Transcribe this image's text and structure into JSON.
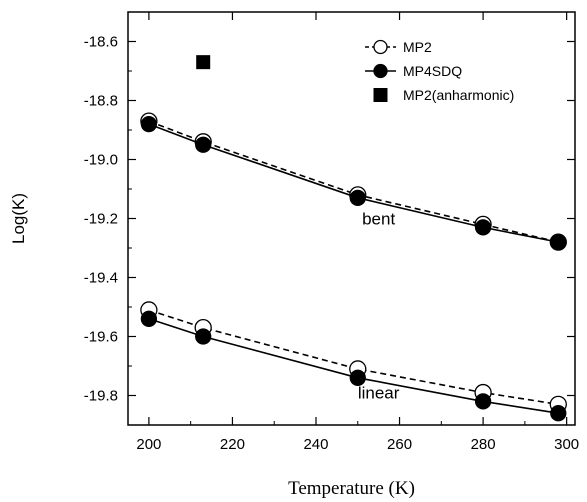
{
  "chart_data": {
    "type": "line",
    "title": "",
    "xlabel": "Temperature (K)",
    "ylabel": "Log(K)",
    "xlim": [
      195,
      302
    ],
    "ylim": [
      -19.9,
      -18.5
    ],
    "xticks": [
      200,
      220,
      240,
      260,
      280,
      300
    ],
    "yticks": [
      -18.6,
      -18.8,
      -19.0,
      -19.2,
      -19.4,
      -19.6,
      -19.8
    ],
    "grid": false,
    "legend_position": "top-right",
    "series": [
      {
        "name": "MP2",
        "style": "dashed",
        "marker": "open-circle",
        "groups": [
          {
            "x": [
              200,
              213,
              250,
              280,
              298
            ],
            "y": [
              -18.87,
              -18.94,
              -19.12,
              -19.22,
              -19.28
            ]
          },
          {
            "x": [
              200,
              213,
              250,
              280,
              298
            ],
            "y": [
              -19.51,
              -19.57,
              -19.71,
              -19.79,
              -19.83
            ]
          }
        ]
      },
      {
        "name": "MP4SDQ",
        "style": "solid",
        "marker": "filled-circle",
        "groups": [
          {
            "x": [
              200,
              213,
              250,
              280,
              298
            ],
            "y": [
              -18.88,
              -18.95,
              -19.13,
              -19.23,
              -19.28
            ]
          },
          {
            "x": [
              200,
              213,
              250,
              280,
              298
            ],
            "y": [
              -19.54,
              -19.6,
              -19.74,
              -19.82,
              -19.86
            ]
          }
        ]
      },
      {
        "name": "MP2(anharmonic)",
        "style": "none",
        "marker": "filled-square",
        "groups": [
          {
            "x": [
              213
            ],
            "y": [
              -18.67
            ]
          }
        ]
      }
    ],
    "annotations": [
      {
        "text": "bent",
        "x": 255,
        "y": -19.22
      },
      {
        "text": "linear",
        "x": 255,
        "y": -19.81
      }
    ]
  },
  "colors": {
    "line": "#000000",
    "background": "#ffffff"
  }
}
